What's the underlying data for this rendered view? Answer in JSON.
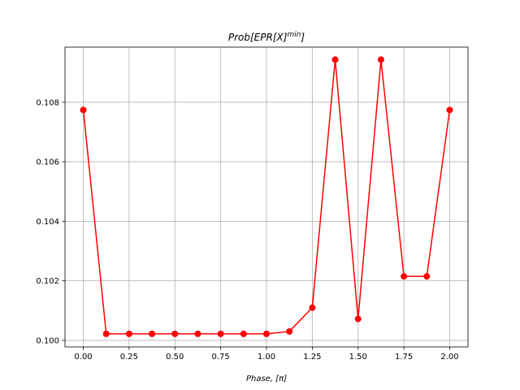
{
  "chart_data": {
    "type": "line",
    "title_main": "Prob[EPR[X]",
    "title_sup": "min",
    "title_end": "]",
    "xlabel": "Phase, [π]",
    "ylabel": "",
    "xlim": [
      -0.1,
      2.1
    ],
    "ylim": [
      0.09978,
      0.10985
    ],
    "xticks": [
      0.0,
      0.25,
      0.5,
      0.75,
      1.0,
      1.25,
      1.5,
      1.75,
      2.0
    ],
    "xtick_labels": [
      "0.00",
      "0.25",
      "0.50",
      "0.75",
      "1.00",
      "1.25",
      "1.50",
      "1.75",
      "2.00"
    ],
    "yticks": [
      0.1,
      0.102,
      0.104,
      0.106,
      0.108
    ],
    "ytick_labels": [
      "0.100",
      "0.102",
      "0.104",
      "0.106",
      "0.108"
    ],
    "grid": true,
    "series": [
      {
        "color": "#ff0000",
        "marker": "circle",
        "x": [
          0.0,
          0.125,
          0.25,
          0.375,
          0.5,
          0.625,
          0.75,
          0.875,
          1.0,
          1.125,
          1.25,
          1.375,
          1.5,
          1.625,
          1.75,
          1.875,
          2.0
        ],
        "y": [
          0.10774,
          0.10022,
          0.10022,
          0.10022,
          0.10022,
          0.10022,
          0.10022,
          0.10022,
          0.10022,
          0.1003,
          0.1011,
          0.10943,
          0.10072,
          0.10943,
          0.10215,
          0.10215,
          0.10774
        ]
      }
    ]
  }
}
